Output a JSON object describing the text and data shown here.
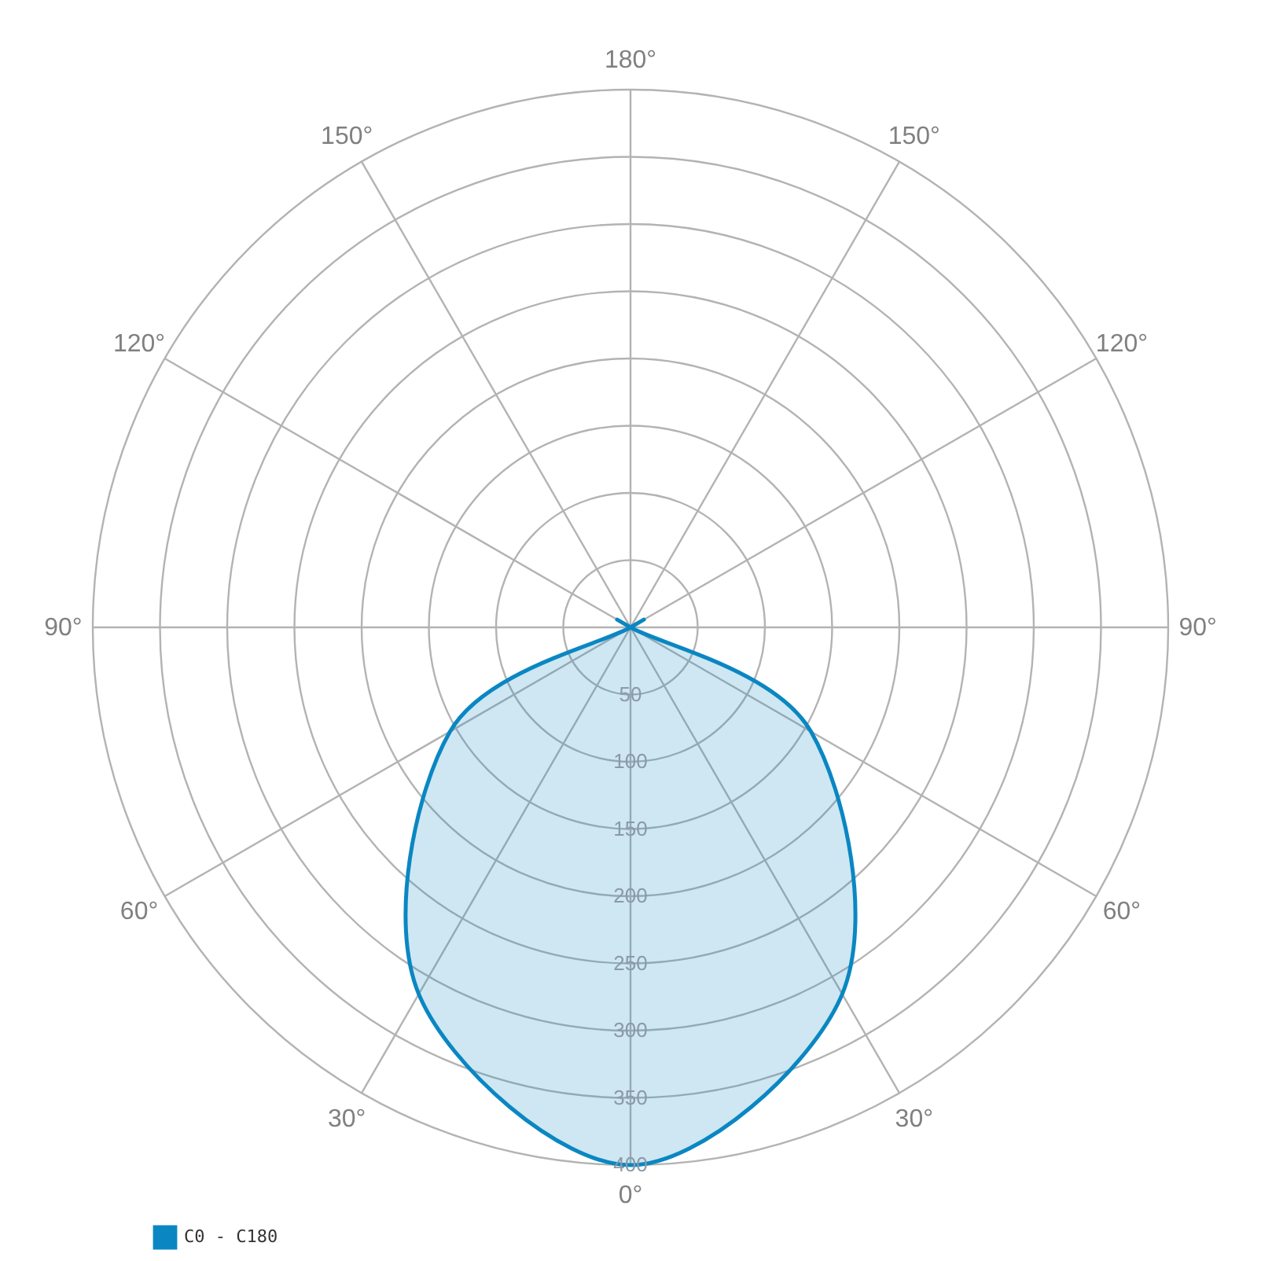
{
  "chart_data": {
    "type": "radar",
    "categories": [
      "180°",
      "150°",
      "120°",
      "90°",
      "60°",
      "30°",
      "0°",
      "30°",
      "60°",
      "90°",
      "120°",
      "150°"
    ],
    "series": [
      {
        "name": "C0 - C180",
        "color": "#0a87c2",
        "values": [
          0,
          0,
          0,
          0,
          155,
          315,
          400,
          315,
          155,
          0,
          0,
          0
        ]
      }
    ],
    "ylim": [
      0,
      400
    ],
    "yticks": [
      50,
      100,
      150,
      200,
      250,
      300,
      350,
      400
    ],
    "grid": true,
    "legend": "bottom left"
  }
}
